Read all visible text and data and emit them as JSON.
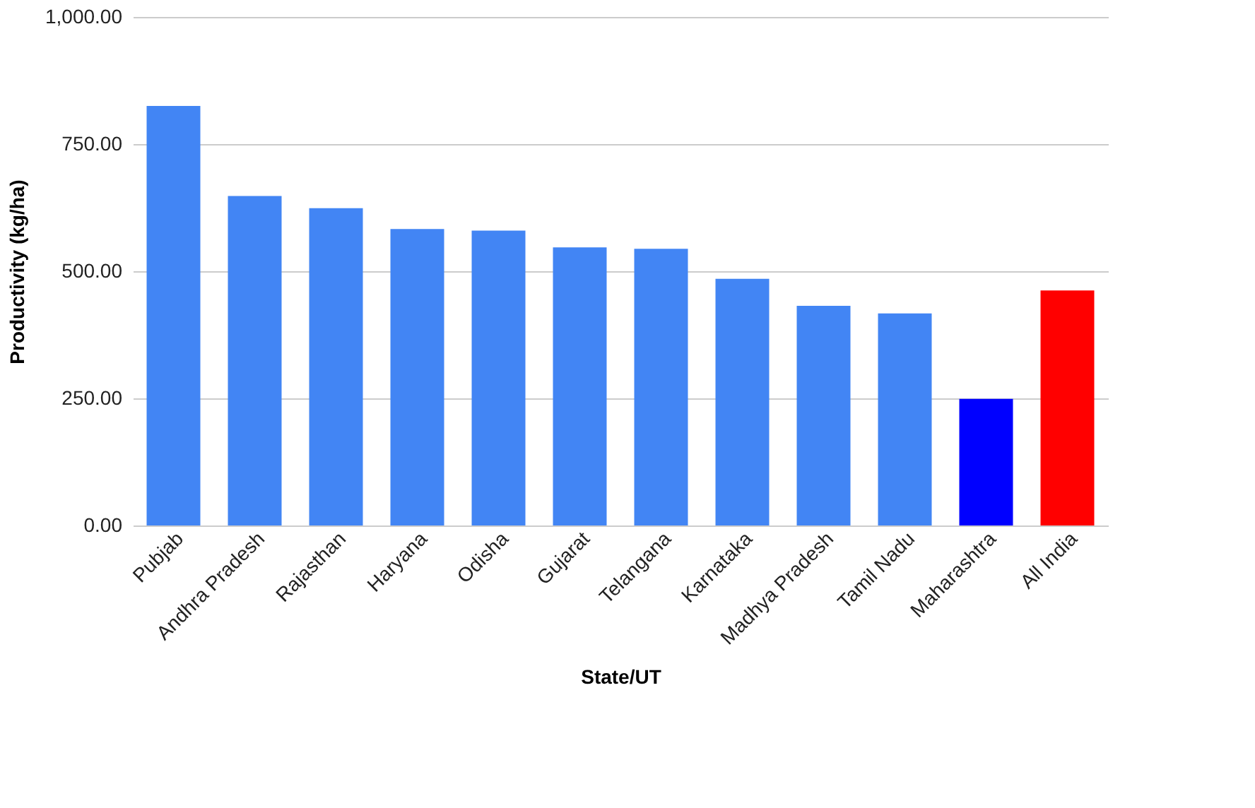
{
  "chart_data": {
    "type": "bar",
    "xlabel": "State/UT",
    "ylabel": "Productivity (kg/ha)",
    "categories": [
      "Pubjab",
      "Andhra Pradesh",
      "Rajasthan",
      "Haryana",
      "Odisha",
      "Gujarat",
      "Telangana",
      "Karnataka",
      "Madhya Pradesh",
      "Tamil Nadu",
      "Maharashtra",
      "All India"
    ],
    "values": [
      825,
      648,
      624,
      583,
      580,
      547,
      544,
      485,
      432,
      417,
      249,
      462
    ],
    "colors": [
      "#4285f4",
      "#4285f4",
      "#4285f4",
      "#4285f4",
      "#4285f4",
      "#4285f4",
      "#4285f4",
      "#4285f4",
      "#4285f4",
      "#4285f4",
      "#0000ff",
      "#ff0000"
    ],
    "ylim": [
      0,
      1000
    ],
    "yticks": [
      {
        "value": 0,
        "label": "0.00"
      },
      {
        "value": 250,
        "label": "250.00"
      },
      {
        "value": 500,
        "label": "500.00"
      },
      {
        "value": 750,
        "label": "750.00"
      },
      {
        "value": 1000,
        "label": "1,000.00"
      }
    ],
    "grid": "y"
  }
}
